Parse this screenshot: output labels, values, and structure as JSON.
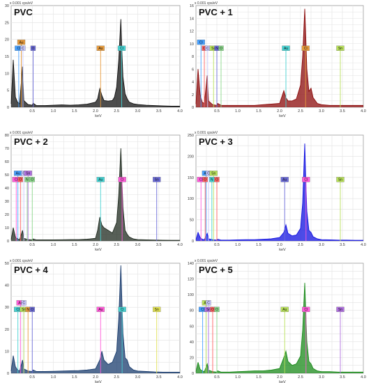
{
  "chart_data": [
    {
      "type": "line",
      "title": "PVC",
      "unit_label": "x 0.001 cps/eV",
      "xlabel": "keV",
      "xlim": [
        0,
        4
      ],
      "ylim": [
        0,
        30
      ],
      "y_ticks": [
        0,
        5,
        10,
        15,
        20,
        25,
        30
      ],
      "x_ticks": [
        "0.5",
        "1.0",
        "1.5",
        "2.0",
        "2.5",
        "3.0",
        "3.5",
        "4.0"
      ],
      "grid": true,
      "spectrum_color": "#111111",
      "series": [
        {
          "x": [
            0.0,
            0.05,
            0.1,
            0.15,
            0.2,
            0.27,
            0.3,
            0.4,
            0.5,
            0.52,
            0.6,
            0.8,
            1.0,
            1.2,
            1.4,
            1.6,
            1.8,
            1.9,
            2.0,
            2.05,
            2.1,
            2.15,
            2.2,
            2.3,
            2.4,
            2.45,
            2.5,
            2.55,
            2.6,
            2.62,
            2.65,
            2.7,
            2.75,
            2.8,
            2.9,
            3.0,
            3.2,
            3.4,
            3.6,
            3.8,
            4.0
          ],
          "y": [
            1,
            14,
            3,
            1.5,
            1,
            12,
            2,
            0.8,
            0.6,
            1.2,
            0.5,
            0.5,
            0.6,
            0.7,
            0.6,
            0.7,
            0.9,
            1.2,
            1.5,
            2.5,
            5.5,
            3.5,
            2,
            1.8,
            2,
            3,
            6,
            14,
            26,
            18,
            9,
            4,
            2.5,
            1.5,
            1,
            0.8,
            0.6,
            0.5,
            0.4,
            0.3,
            0.3
          ]
        }
      ],
      "markers": [
        {
          "label": "Cl",
          "x": 0.18,
          "color": "#46a0ff",
          "row": 2
        },
        {
          "label": "Au",
          "x": 0.24,
          "color": "#e69a3c",
          "row": 1
        },
        {
          "label": "C",
          "x": 0.28,
          "color": "#c8c8ff",
          "row": 2
        },
        {
          "label": "O",
          "x": 0.52,
          "color": "#6a6ad8",
          "row": 2
        },
        {
          "label": "Au",
          "x": 2.12,
          "color": "#e69a3c",
          "row": 2
        },
        {
          "label": "Cl",
          "x": 2.62,
          "color": "#46d2d2",
          "row": 2
        }
      ]
    },
    {
      "type": "line",
      "title": "PVC + 1",
      "unit_label": "x 0.001 cps/eV",
      "xlabel": "keV",
      "xlim": [
        0,
        4
      ],
      "ylim": [
        0,
        16
      ],
      "y_ticks": [
        0,
        2,
        4,
        6,
        8,
        10,
        12,
        14,
        16
      ],
      "x_ticks": [
        "0.5",
        "1.0",
        "1.5",
        "2.0",
        "2.5",
        "3.0",
        "3.5",
        "4.0"
      ],
      "grid": true,
      "spectrum_color": "#8b0a0a",
      "series": [
        {
          "x": [
            0.0,
            0.05,
            0.1,
            0.15,
            0.2,
            0.27,
            0.3,
            0.4,
            0.5,
            0.52,
            0.6,
            0.8,
            1.0,
            1.2,
            1.4,
            1.6,
            1.8,
            2.0,
            2.1,
            2.15,
            2.2,
            2.3,
            2.4,
            2.5,
            2.55,
            2.6,
            2.62,
            2.65,
            2.7,
            2.75,
            2.8,
            2.9,
            3.0,
            3.2,
            3.4,
            3.6,
            3.8,
            4.0
          ],
          "y": [
            0.5,
            6,
            2,
            0.8,
            0.6,
            5,
            1,
            0.4,
            0.3,
            0.6,
            0.3,
            0.3,
            0.3,
            0.3,
            0.3,
            0.4,
            0.5,
            0.6,
            2.6,
            1.5,
            1.0,
            1.0,
            1.3,
            3.5,
            8,
            15.5,
            12,
            6,
            2.5,
            3,
            1.5,
            0.6,
            0.4,
            0.3,
            0.3,
            0.3,
            0.3,
            0.3
          ]
        }
      ],
      "markers": [
        {
          "label": "Cl",
          "x": 0.12,
          "color": "#46a0ff",
          "row": 1
        },
        {
          "label": "O",
          "x": 0.2,
          "color": "#ff6060",
          "row": 2
        },
        {
          "label": "C",
          "x": 0.28,
          "color": "#c8c8ff",
          "row": 2
        },
        {
          "label": "Sn",
          "x": 0.42,
          "color": "#b8e05a",
          "row": 2
        },
        {
          "label": "N",
          "x": 0.5,
          "color": "#6a6ad8",
          "row": 2
        },
        {
          "label": "O",
          "x": 0.6,
          "color": "#8ad88a",
          "row": 2
        },
        {
          "label": "Au",
          "x": 2.15,
          "color": "#46d2d2",
          "row": 2
        },
        {
          "label": "Cl",
          "x": 2.62,
          "color": "#e69a3c",
          "row": 2
        },
        {
          "label": "Sn",
          "x": 3.45,
          "color": "#b8e05a",
          "row": 2
        }
      ]
    },
    {
      "type": "line",
      "title": "PVC + 2",
      "unit_label": "x 0.001 cps/eV",
      "xlabel": "keV",
      "xlim": [
        0,
        4
      ],
      "ylim": [
        0,
        80
      ],
      "y_ticks": [
        0,
        10,
        20,
        30,
        40,
        50,
        60,
        70,
        80
      ],
      "x_ticks": [
        "0.5",
        "1.0",
        "1.5",
        "2.0",
        "2.5",
        "3.0",
        "3.5",
        "4.0"
      ],
      "grid": true,
      "spectrum_color": "#1f2a1f",
      "series": [
        {
          "x": [
            0.0,
            0.05,
            0.1,
            0.15,
            0.2,
            0.27,
            0.3,
            0.4,
            0.5,
            0.52,
            0.6,
            0.8,
            1.0,
            1.2,
            1.4,
            1.6,
            1.8,
            2.0,
            2.05,
            2.1,
            2.15,
            2.2,
            2.3,
            2.4,
            2.5,
            2.55,
            2.6,
            2.62,
            2.65,
            2.7,
            2.75,
            2.8,
            2.9,
            3.0,
            3.2,
            3.4,
            3.6,
            3.8,
            4.0
          ],
          "y": [
            1,
            10,
            3,
            1.5,
            1,
            8,
            2,
            1,
            0.8,
            1.5,
            0.8,
            0.8,
            0.8,
            0.9,
            1,
            1,
            1.3,
            2,
            8,
            18,
            12,
            10,
            8,
            6,
            14,
            35,
            70,
            52,
            25,
            8,
            5,
            3,
            1.5,
            1,
            0.8,
            0.7,
            0.6,
            0.5,
            0.5
          ]
        }
      ],
      "markers": [
        {
          "label": "Au",
          "x": 0.16,
          "color": "#46a0ff",
          "row": 1
        },
        {
          "label": "C",
          "x": 0.3,
          "color": "#c8c8ff",
          "row": 1
        },
        {
          "label": "Sn",
          "x": 0.4,
          "color": "#b070e0",
          "row": 1
        },
        {
          "label": "Cl",
          "x": 0.12,
          "color": "#ff5ad8",
          "row": 2
        },
        {
          "label": "O",
          "x": 0.22,
          "color": "#ff6060",
          "row": 2
        },
        {
          "label": "N",
          "x": 0.38,
          "color": "#8ad88a",
          "row": 2
        },
        {
          "label": "O",
          "x": 0.5,
          "color": "#8ad88a",
          "row": 2
        },
        {
          "label": "Au",
          "x": 2.12,
          "color": "#46d2d2",
          "row": 2
        },
        {
          "label": "Cl",
          "x": 2.63,
          "color": "#ff5ad8",
          "row": 2
        },
        {
          "label": "Sn",
          "x": 3.45,
          "color": "#6a6ad8",
          "row": 2
        }
      ]
    },
    {
      "type": "line",
      "title": "PVC + 3",
      "unit_label": "x 0.001 cps/eV",
      "xlabel": "keV",
      "xlim": [
        0,
        4
      ],
      "ylim": [
        0,
        250
      ],
      "y_ticks": [
        0,
        50,
        100,
        150,
        200,
        250
      ],
      "x_ticks": [
        "0.5",
        "1.0",
        "1.5",
        "2.0",
        "2.5",
        "3.0",
        "3.5",
        "4.0"
      ],
      "grid": true,
      "spectrum_color": "#1010e0",
      "series": [
        {
          "x": [
            0.0,
            0.05,
            0.1,
            0.15,
            0.2,
            0.27,
            0.3,
            0.4,
            0.5,
            0.52,
            0.6,
            0.8,
            1.0,
            1.2,
            1.4,
            1.6,
            1.8,
            2.0,
            2.1,
            2.15,
            2.2,
            2.3,
            2.4,
            2.5,
            2.55,
            2.6,
            2.62,
            2.65,
            2.7,
            2.75,
            2.8,
            2.9,
            3.0,
            3.2,
            3.4,
            3.6,
            3.8,
            4.0
          ],
          "y": [
            3,
            20,
            8,
            4,
            3,
            18,
            5,
            3,
            2,
            4,
            2,
            2,
            2.5,
            3,
            3,
            4,
            5,
            8,
            20,
            38,
            18,
            12,
            14,
            30,
            90,
            230,
            160,
            70,
            25,
            20,
            10,
            5,
            3,
            2.5,
            2,
            2,
            1.5,
            1.5
          ]
        }
      ],
      "markers": [
        {
          "label": "Au",
          "x": 0.24,
          "color": "#46a0ff",
          "row": 1
        },
        {
          "label": "C",
          "x": 0.3,
          "color": "#c8c8ff",
          "row": 1
        },
        {
          "label": "Sn",
          "x": 0.42,
          "color": "#b8e05a",
          "row": 1
        },
        {
          "label": "Cl",
          "x": 0.12,
          "color": "#ff5ad8",
          "row": 2
        },
        {
          "label": "O",
          "x": 0.22,
          "color": "#ff6060",
          "row": 2
        },
        {
          "label": "N",
          "x": 0.38,
          "color": "#46d2d2",
          "row": 2
        },
        {
          "label": "O",
          "x": 0.5,
          "color": "#ff6060",
          "row": 2
        },
        {
          "label": "Au",
          "x": 2.12,
          "color": "#6a6ad8",
          "row": 2
        },
        {
          "label": "Cl",
          "x": 2.63,
          "color": "#ff5ad8",
          "row": 2
        },
        {
          "label": "Sn",
          "x": 3.45,
          "color": "#b8e05a",
          "row": 2
        }
      ]
    },
    {
      "type": "line",
      "title": "PVC + 4",
      "unit_label": "x 0.001 cps/eV",
      "xlabel": "keV",
      "xlim": [
        0,
        4
      ],
      "ylim": [
        0,
        50
      ],
      "y_ticks": [
        0,
        10,
        20,
        30,
        40,
        50
      ],
      "x_ticks": [
        "0.5",
        "1.0",
        "1.5",
        "2.0",
        "2.5",
        "3.0",
        "3.5",
        "4.0"
      ],
      "grid": true,
      "spectrum_color": "#1a3c6e",
      "series": [
        {
          "x": [
            0.0,
            0.05,
            0.1,
            0.15,
            0.2,
            0.27,
            0.3,
            0.4,
            0.5,
            0.52,
            0.6,
            0.8,
            1.0,
            1.2,
            1.4,
            1.6,
            1.8,
            2.0,
            2.1,
            2.15,
            2.2,
            2.3,
            2.4,
            2.5,
            2.55,
            2.6,
            2.62,
            2.65,
            2.7,
            2.75,
            2.8,
            2.9,
            3.0,
            3.2,
            3.4,
            3.6,
            3.8,
            4.0
          ],
          "y": [
            1,
            8,
            3,
            1.5,
            1,
            6,
            2,
            1,
            0.8,
            1.5,
            0.8,
            0.8,
            0.9,
            1,
            1.1,
            1.2,
            1.5,
            2,
            6,
            10,
            6,
            4,
            5,
            10,
            25,
            49,
            36,
            18,
            7,
            6,
            3,
            1.5,
            1,
            0.8,
            0.6,
            0.5,
            0.5,
            0.5
          ]
        }
      ],
      "markers": [
        {
          "label": "Au",
          "x": 0.22,
          "color": "#ff5ad8",
          "row": 1
        },
        {
          "label": "C",
          "x": 0.3,
          "color": "#c8c8ff",
          "row": 1
        },
        {
          "label": "Cl",
          "x": 0.16,
          "color": "#46d2d2",
          "row": 2
        },
        {
          "label": "Sn",
          "x": 0.3,
          "color": "#b8e05a",
          "row": 2
        },
        {
          "label": "N",
          "x": 0.4,
          "color": "#e69a3c",
          "row": 2
        },
        {
          "label": "O",
          "x": 0.5,
          "color": "#6a6ad8",
          "row": 2
        },
        {
          "label": "Au",
          "x": 2.12,
          "color": "#ff5ad8",
          "row": 2
        },
        {
          "label": "Cl",
          "x": 2.63,
          "color": "#46d2d2",
          "row": 2
        },
        {
          "label": "Sn",
          "x": 3.45,
          "color": "#e0e050",
          "row": 2
        }
      ]
    },
    {
      "type": "line",
      "title": "PVC + 5",
      "unit_label": "x 0.001 cps/eV",
      "xlabel": "keV",
      "xlim": [
        0,
        4
      ],
      "ylim": [
        0,
        140
      ],
      "y_ticks": [
        0,
        20,
        40,
        60,
        80,
        100,
        120,
        140
      ],
      "x_ticks": [
        "0.5",
        "1.0",
        "1.5",
        "2.0",
        "2.5",
        "3.0",
        "3.5",
        "4.0"
      ],
      "grid": true,
      "spectrum_color": "#1a8a1a",
      "series": [
        {
          "x": [
            0.0,
            0.05,
            0.1,
            0.15,
            0.2,
            0.27,
            0.3,
            0.4,
            0.5,
            0.52,
            0.6,
            0.8,
            1.0,
            1.2,
            1.4,
            1.6,
            1.8,
            2.0,
            2.1,
            2.15,
            2.2,
            2.3,
            2.4,
            2.5,
            2.55,
            2.6,
            2.62,
            2.65,
            2.7,
            2.75,
            2.8,
            2.9,
            3.0,
            3.2,
            3.4,
            3.6,
            3.8,
            4.0
          ],
          "y": [
            2,
            14,
            5,
            3,
            2,
            12,
            4,
            2,
            1.5,
            3,
            1.5,
            1.5,
            2,
            2.5,
            3,
            3,
            4,
            6,
            20,
            28,
            15,
            10,
            12,
            22,
            55,
            115,
            85,
            40,
            15,
            12,
            6,
            3,
            2,
            2,
            1.5,
            1.5,
            1.5,
            1.5
          ]
        }
      ],
      "markers": [
        {
          "label": "Au",
          "x": 0.24,
          "color": "#b8e05a",
          "row": 1
        },
        {
          "label": "C",
          "x": 0.3,
          "color": "#c8c8ff",
          "row": 1
        },
        {
          "label": "Cl",
          "x": 0.16,
          "color": "#46a0ff",
          "row": 2
        },
        {
          "label": "Sn",
          "x": 0.3,
          "color": "#b070e0",
          "row": 2
        },
        {
          "label": "O",
          "x": 0.4,
          "color": "#ff6060",
          "row": 2
        },
        {
          "label": "O",
          "x": 0.5,
          "color": "#8ad88a",
          "row": 2
        },
        {
          "label": "Au",
          "x": 2.12,
          "color": "#b8e05a",
          "row": 2
        },
        {
          "label": "Cl",
          "x": 2.63,
          "color": "#ff5ad8",
          "row": 2
        },
        {
          "label": "Sn",
          "x": 3.45,
          "color": "#b070e0",
          "row": 2
        }
      ]
    }
  ]
}
